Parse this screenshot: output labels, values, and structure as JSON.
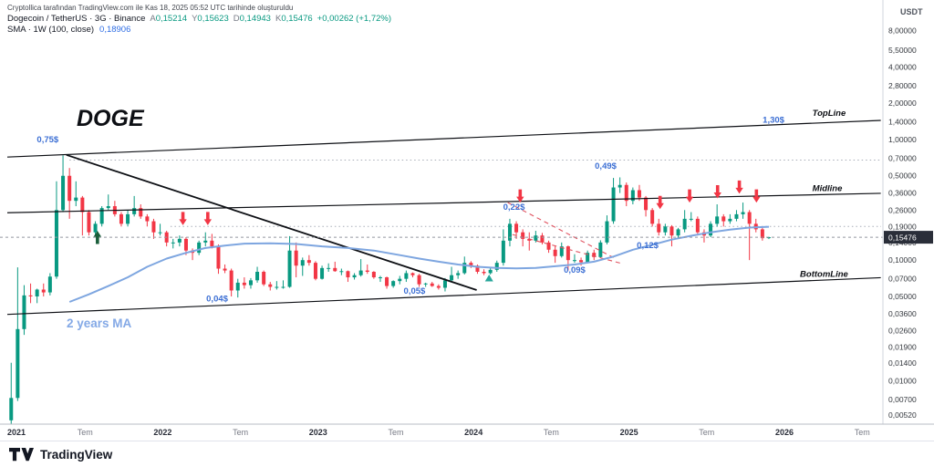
{
  "header": {
    "attribution": "Cryptollica tarafından TradingView.com ile Kas 18, 2025 05:52 UTC tarihinde oluşturuldu",
    "symbol": "Dogecoin / TetherUS · 3G · Binance",
    "ohlc": [
      {
        "label": "A",
        "value": "0,15214"
      },
      {
        "label": "Y",
        "value": "0,15623"
      },
      {
        "label": "D",
        "value": "0,14943"
      },
      {
        "label": "K",
        "value": "0,15476"
      }
    ],
    "change": "+0,00262 (+1,72%)",
    "indicator": {
      "label": "SMA · 1W (100, close)",
      "value": "0,18906"
    }
  },
  "axis": {
    "currency": "USDT",
    "price_ticks": [
      8,
      5.5,
      4,
      2.8,
      2,
      1.4,
      1,
      0.7,
      0.5,
      0.36,
      0.26,
      0.19,
      0.14,
      0.1,
      0.07,
      0.05,
      0.036,
      0.026,
      0.019,
      0.014,
      0.01,
      0.007,
      0.0052
    ],
    "time_ticks": [
      {
        "label": "2021",
        "t": 2021
      },
      {
        "label": "Tem",
        "t": 2021.5
      },
      {
        "label": "2022",
        "t": 2022
      },
      {
        "label": "Tem",
        "t": 2022.5
      },
      {
        "label": "2023",
        "t": 2023
      },
      {
        "label": "Tem",
        "t": 2023.5
      },
      {
        "label": "2024",
        "t": 2024
      },
      {
        "label": "Tem",
        "t": 2024.5
      },
      {
        "label": "2025",
        "t": 2025
      },
      {
        "label": "Tem",
        "t": 2025.5
      },
      {
        "label": "2026",
        "t": 2026
      },
      {
        "label": "Tem",
        "t": 2026.5
      }
    ]
  },
  "footer": {
    "brand": "TradingView"
  },
  "chart_data": {
    "type": "candlestick",
    "title": "DOGE",
    "symbol": "Dogecoin / TetherUS",
    "exchange": "Binance",
    "scale": "log",
    "ylim": [
      0.0052,
      8.0
    ],
    "x_start_year": 2021,
    "candles_per_year": 24,
    "x_axis_labels": [
      "2021",
      "Tem",
      "2022",
      "Tem",
      "2023",
      "Tem",
      "2024",
      "Tem",
      "2025",
      "Tem",
      "2026",
      "Tem"
    ],
    "colors": {
      "up": "#089981",
      "down": "#f23645",
      "sma": "#7ea6e0",
      "label_blue": "#3c6fd4",
      "line_black": "#0d0f14",
      "wedge_red": "#e0525f"
    },
    "candles_ohlc": [
      [
        0.0047,
        0.0141,
        0.0044,
        0.0072
      ],
      [
        0.0072,
        0.087,
        0.0068,
        0.0268
      ],
      [
        0.0268,
        0.062,
        0.024,
        0.051
      ],
      [
        0.051,
        0.064,
        0.044,
        0.05
      ],
      [
        0.05,
        0.058,
        0.044,
        0.057
      ],
      [
        0.057,
        0.064,
        0.05,
        0.054
      ],
      [
        0.054,
        0.078,
        0.051,
        0.073
      ],
      [
        0.073,
        0.45,
        0.07,
        0.26
      ],
      [
        0.26,
        0.739,
        0.25,
        0.5
      ],
      [
        0.5,
        0.58,
        0.22,
        0.31
      ],
      [
        0.31,
        0.45,
        0.28,
        0.33
      ],
      [
        0.33,
        0.34,
        0.16,
        0.25
      ],
      [
        0.25,
        0.26,
        0.16,
        0.17
      ],
      [
        0.17,
        0.21,
        0.16,
        0.2
      ],
      [
        0.2,
        0.28,
        0.19,
        0.27
      ],
      [
        0.27,
        0.35,
        0.26,
        0.28
      ],
      [
        0.28,
        0.31,
        0.23,
        0.24
      ],
      [
        0.24,
        0.25,
        0.19,
        0.2
      ],
      [
        0.2,
        0.26,
        0.19,
        0.24
      ],
      [
        0.24,
        0.34,
        0.23,
        0.27
      ],
      [
        0.27,
        0.29,
        0.22,
        0.23
      ],
      [
        0.23,
        0.24,
        0.19,
        0.21
      ],
      [
        0.21,
        0.22,
        0.15,
        0.17
      ],
      [
        0.17,
        0.2,
        0.16,
        0.17
      ],
      [
        0.17,
        0.175,
        0.13,
        0.14
      ],
      [
        0.14,
        0.15,
        0.125,
        0.14
      ],
      [
        0.14,
        0.16,
        0.13,
        0.15
      ],
      [
        0.15,
        0.155,
        0.11,
        0.12
      ],
      [
        0.12,
        0.125,
        0.1,
        0.115
      ],
      [
        0.115,
        0.145,
        0.11,
        0.14
      ],
      [
        0.14,
        0.17,
        0.13,
        0.145
      ],
      [
        0.145,
        0.165,
        0.125,
        0.13
      ],
      [
        0.13,
        0.135,
        0.077,
        0.085
      ],
      [
        0.085,
        0.092,
        0.078,
        0.082
      ],
      [
        0.082,
        0.085,
        0.05,
        0.056
      ],
      [
        0.056,
        0.07,
        0.049,
        0.065
      ],
      [
        0.065,
        0.072,
        0.058,
        0.062
      ],
      [
        0.062,
        0.071,
        0.058,
        0.068
      ],
      [
        0.068,
        0.088,
        0.065,
        0.08
      ],
      [
        0.08,
        0.082,
        0.061,
        0.063
      ],
      [
        0.063,
        0.066,
        0.056,
        0.06
      ],
      [
        0.06,
        0.067,
        0.057,
        0.06
      ],
      [
        0.06,
        0.068,
        0.058,
        0.06
      ],
      [
        0.06,
        0.158,
        0.059,
        0.12
      ],
      [
        0.12,
        0.14,
        0.072,
        0.09
      ],
      [
        0.09,
        0.105,
        0.074,
        0.1
      ],
      [
        0.1,
        0.11,
        0.09,
        0.095
      ],
      [
        0.095,
        0.098,
        0.068,
        0.07
      ],
      [
        0.07,
        0.09,
        0.069,
        0.086
      ],
      [
        0.086,
        0.094,
        0.08,
        0.086
      ],
      [
        0.086,
        0.097,
        0.08,
        0.081
      ],
      [
        0.081,
        0.085,
        0.075,
        0.081
      ],
      [
        0.081,
        0.082,
        0.066,
        0.072
      ],
      [
        0.072,
        0.078,
        0.069,
        0.075
      ],
      [
        0.075,
        0.102,
        0.073,
        0.082
      ],
      [
        0.082,
        0.092,
        0.077,
        0.08
      ],
      [
        0.08,
        0.081,
        0.07,
        0.072
      ],
      [
        0.072,
        0.074,
        0.066,
        0.072
      ],
      [
        0.072,
        0.073,
        0.058,
        0.061
      ],
      [
        0.061,
        0.068,
        0.059,
        0.067
      ],
      [
        0.067,
        0.074,
        0.063,
        0.07
      ],
      [
        0.07,
        0.082,
        0.066,
        0.078
      ],
      [
        0.078,
        0.079,
        0.072,
        0.075
      ],
      [
        0.075,
        0.077,
        0.06,
        0.063
      ],
      [
        0.063,
        0.065,
        0.06,
        0.064
      ],
      [
        0.064,
        0.066,
        0.06,
        0.061
      ],
      [
        0.061,
        0.063,
        0.057,
        0.059
      ],
      [
        0.059,
        0.071,
        0.055,
        0.068
      ],
      [
        0.068,
        0.088,
        0.066,
        0.075
      ],
      [
        0.075,
        0.082,
        0.07,
        0.078
      ],
      [
        0.078,
        0.107,
        0.076,
        0.095
      ],
      [
        0.095,
        0.098,
        0.086,
        0.09
      ],
      [
        0.09,
        0.092,
        0.077,
        0.08
      ],
      [
        0.08,
        0.084,
        0.075,
        0.078
      ],
      [
        0.078,
        0.087,
        0.076,
        0.083
      ],
      [
        0.083,
        0.099,
        0.08,
        0.095
      ],
      [
        0.095,
        0.18,
        0.09,
        0.145
      ],
      [
        0.145,
        0.22,
        0.13,
        0.2
      ],
      [
        0.2,
        0.21,
        0.15,
        0.17
      ],
      [
        0.17,
        0.18,
        0.13,
        0.15
      ],
      [
        0.15,
        0.17,
        0.12,
        0.145
      ],
      [
        0.145,
        0.175,
        0.14,
        0.16
      ],
      [
        0.16,
        0.168,
        0.135,
        0.14
      ],
      [
        0.14,
        0.145,
        0.115,
        0.122
      ],
      [
        0.122,
        0.13,
        0.095,
        0.108
      ],
      [
        0.108,
        0.14,
        0.105,
        0.13
      ],
      [
        0.13,
        0.132,
        0.082,
        0.1
      ],
      [
        0.1,
        0.112,
        0.095,
        0.1
      ],
      [
        0.1,
        0.105,
        0.09,
        0.096
      ],
      [
        0.096,
        0.12,
        0.094,
        0.115
      ],
      [
        0.115,
        0.122,
        0.1,
        0.106
      ],
      [
        0.106,
        0.146,
        0.104,
        0.14
      ],
      [
        0.14,
        0.235,
        0.135,
        0.21
      ],
      [
        0.21,
        0.48,
        0.2,
        0.4
      ],
      [
        0.4,
        0.485,
        0.36,
        0.42
      ],
      [
        0.42,
        0.44,
        0.28,
        0.31
      ],
      [
        0.31,
        0.4,
        0.29,
        0.38
      ],
      [
        0.38,
        0.42,
        0.31,
        0.33
      ],
      [
        0.33,
        0.34,
        0.23,
        0.26
      ],
      [
        0.26,
        0.27,
        0.19,
        0.2
      ],
      [
        0.2,
        0.22,
        0.16,
        0.17
      ],
      [
        0.17,
        0.2,
        0.16,
        0.19
      ],
      [
        0.19,
        0.195,
        0.13,
        0.16
      ],
      [
        0.16,
        0.185,
        0.15,
        0.18
      ],
      [
        0.18,
        0.26,
        0.17,
        0.22
      ],
      [
        0.22,
        0.25,
        0.21,
        0.22
      ],
      [
        0.22,
        0.23,
        0.16,
        0.17
      ],
      [
        0.17,
        0.18,
        0.14,
        0.16
      ],
      [
        0.16,
        0.21,
        0.155,
        0.2
      ],
      [
        0.2,
        0.29,
        0.19,
        0.23
      ],
      [
        0.23,
        0.24,
        0.19,
        0.21
      ],
      [
        0.21,
        0.24,
        0.2,
        0.22
      ],
      [
        0.22,
        0.26,
        0.21,
        0.24
      ],
      [
        0.24,
        0.3,
        0.22,
        0.25
      ],
      [
        0.25,
        0.26,
        0.1,
        0.2
      ],
      [
        0.2,
        0.22,
        0.17,
        0.18
      ],
      [
        0.18,
        0.19,
        0.145,
        0.152
      ],
      [
        0.15214,
        0.15623,
        0.14943,
        0.15476
      ]
    ],
    "sma": {
      "label": "2 years MA",
      "indicator": "SMA 1W (100, close)",
      "last_value": 0.18906,
      "points": [
        [
          9,
          0.045
        ],
        [
          12,
          0.052
        ],
        [
          15,
          0.061
        ],
        [
          18,
          0.072
        ],
        [
          21,
          0.088
        ],
        [
          24,
          0.103
        ],
        [
          27,
          0.115
        ],
        [
          30,
          0.126
        ],
        [
          33,
          0.132
        ],
        [
          36,
          0.137
        ],
        [
          40,
          0.138
        ],
        [
          44,
          0.136
        ],
        [
          48,
          0.13
        ],
        [
          52,
          0.126
        ],
        [
          56,
          0.12
        ],
        [
          60,
          0.11
        ],
        [
          63,
          0.103
        ],
        [
          66,
          0.097
        ],
        [
          69,
          0.092
        ],
        [
          72,
          0.088
        ],
        [
          75,
          0.086
        ],
        [
          78,
          0.0855
        ],
        [
          81,
          0.086
        ],
        [
          84,
          0.089
        ],
        [
          87,
          0.092
        ],
        [
          90,
          0.097
        ],
        [
          93,
          0.107
        ],
        [
          96,
          0.122
        ],
        [
          99,
          0.134
        ],
        [
          102,
          0.148
        ],
        [
          105,
          0.159
        ],
        [
          108,
          0.17
        ],
        [
          111,
          0.179
        ],
        [
          114,
          0.186
        ],
        [
          117,
          0.18906
        ]
      ]
    },
    "trend_lines": [
      {
        "name": "TopLine",
        "t1": 2021.0,
        "p1": 0.715,
        "t2": 2026.62,
        "p2": 1.44,
        "style": "solid",
        "color": "#0d0f14",
        "width": 1.2
      },
      {
        "name": "Midline",
        "t1": 2021.0,
        "p1": 0.247,
        "t2": 2026.62,
        "p2": 0.358,
        "style": "solid",
        "color": "#0d0f14",
        "width": 1.2
      },
      {
        "name": "BottomLine",
        "t1": 2021.0,
        "p1": 0.0355,
        "t2": 2026.62,
        "p2": 0.0715,
        "style": "solid",
        "color": "#0d0f14",
        "width": 1.2
      },
      {
        "name": "downtrend-resistance",
        "t1": 2021.38,
        "p1": 0.745,
        "t2": 2024.02,
        "p2": 0.0565,
        "style": "solid",
        "color": "#0d0f14",
        "width": 1.8
      },
      {
        "name": "wedge-upper",
        "t1": 2024.22,
        "p1": 0.3,
        "t2": 2024.9,
        "p2": 0.105,
        "style": "dashed",
        "color": "#e0525f",
        "width": 1.1
      },
      {
        "name": "wedge-lower",
        "t1": 2024.25,
        "p1": 0.163,
        "t2": 2024.95,
        "p2": 0.094,
        "style": "dashed",
        "color": "#e0525f",
        "width": 1.1
      }
    ],
    "rays": [
      {
        "p": 0.675,
        "t1": 2021.4,
        "style": "dotted",
        "color": "#a8adb8"
      },
      {
        "p": 0.19,
        "t1": 2022.05,
        "style": "dotted",
        "color": "#a8adb8"
      }
    ],
    "price_labels": [
      {
        "text": "0,75$",
        "t": 2021.26,
        "p": 0.95
      },
      {
        "text": "0,49$",
        "t": 2024.85,
        "p": 0.57
      },
      {
        "text": "0,22$",
        "t": 2024.26,
        "p": 0.262
      },
      {
        "text": "0,12$",
        "t": 2025.12,
        "p": 0.126
      },
      {
        "text": "0,09$",
        "t": 2024.65,
        "p": 0.0785
      },
      {
        "text": "0,05$",
        "t": 2023.62,
        "p": 0.0525
      },
      {
        "text": "0,04$",
        "t": 2022.35,
        "p": 0.0455
      },
      {
        "text": "1,30$",
        "t": 2025.93,
        "p": 1.38
      }
    ],
    "line_labels": [
      {
        "text": "TopLine",
        "t": 2026.18,
        "p": 1.57
      },
      {
        "text": "Midline",
        "t": 2026.18,
        "p": 0.372
      },
      {
        "text": "BottomLine",
        "t": 2026.1,
        "p": 0.0725
      }
    ],
    "ma_label": {
      "text": "2 years MA",
      "t": 2021.39,
      "p": 0.0265,
      "color": "#84a9e6"
    },
    "arrows": [
      {
        "dir": "down",
        "color": "#f23645",
        "t": 2022.13,
        "p": 0.195
      },
      {
        "dir": "down",
        "color": "#f23645",
        "t": 2022.29,
        "p": 0.195
      },
      {
        "dir": "down",
        "color": "#f23645",
        "t": 2024.3,
        "p": 0.3
      },
      {
        "dir": "down",
        "color": "#f23645",
        "t": 2025.2,
        "p": 0.265
      },
      {
        "dir": "down",
        "color": "#f23645",
        "t": 2025.39,
        "p": 0.3
      },
      {
        "dir": "down",
        "color": "#f23645",
        "t": 2025.57,
        "p": 0.325
      },
      {
        "dir": "down",
        "color": "#f23645",
        "t": 2025.71,
        "p": 0.355
      },
      {
        "dir": "down",
        "color": "#f23645",
        "t": 2025.82,
        "p": 0.3
      },
      {
        "dir": "up",
        "color": "#1a5e3a",
        "t": 2021.58,
        "p": 0.175
      },
      {
        "dir": "up-triangle",
        "color": "#26a69a",
        "t": 2024.1,
        "p": 0.076
      }
    ],
    "current_price": {
      "value": 0.15476,
      "label": "0,15476"
    }
  }
}
